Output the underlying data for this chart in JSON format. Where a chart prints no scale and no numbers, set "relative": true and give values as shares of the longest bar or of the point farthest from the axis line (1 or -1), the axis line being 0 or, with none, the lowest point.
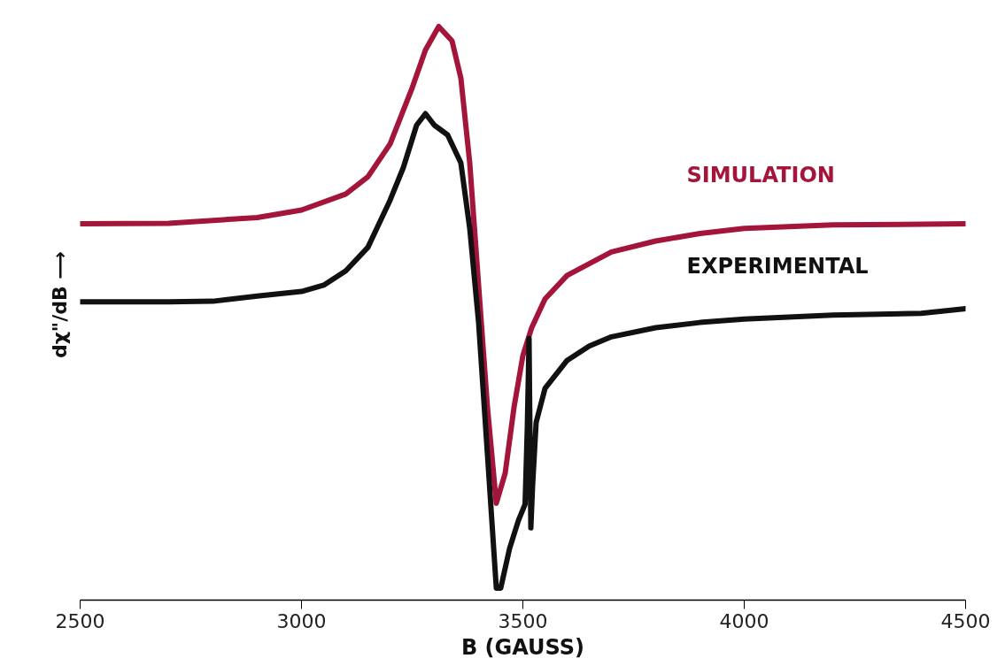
{
  "chart_data": {
    "type": "line",
    "relative": true,
    "xlabel": "B (GAUSS)",
    "ylabel": "dχ\"/dB ⟶",
    "xlim": [
      2500,
      4500
    ],
    "xticks": [
      2500,
      3000,
      3500,
      4000,
      4500
    ],
    "grid": false,
    "marker": "none",
    "line_style": "solid",
    "series": [
      {
        "name": "SIMULATION",
        "color": "#a3153a",
        "x": [
          2500,
          2700,
          2900,
          3000,
          3100,
          3150,
          3200,
          3250,
          3280,
          3310,
          3340,
          3360,
          3380,
          3400,
          3420,
          3440,
          3460,
          3480,
          3500,
          3520,
          3550,
          3600,
          3700,
          3800,
          3900,
          4000,
          4200,
          4500
        ],
        "values": [
          0.656,
          0.657,
          0.667,
          0.68,
          0.708,
          0.738,
          0.795,
          0.893,
          0.959,
          1.0,
          0.975,
          0.91,
          0.762,
          0.549,
          0.336,
          0.169,
          0.221,
          0.336,
          0.426,
          0.475,
          0.525,
          0.566,
          0.607,
          0.626,
          0.639,
          0.648,
          0.654,
          0.656
        ]
      },
      {
        "name": "EXPERIMENTAL",
        "color": "#111111",
        "x": [
          2500,
          2600,
          2700,
          2800,
          2900,
          3000,
          3050,
          3100,
          3150,
          3200,
          3230,
          3260,
          3280,
          3300,
          3330,
          3360,
          3380,
          3400,
          3420,
          3440,
          3450,
          3470,
          3490,
          3505,
          3510,
          3514,
          3518,
          3522,
          3530,
          3550,
          3600,
          3650,
          3700,
          3800,
          3900,
          4000,
          4200,
          4400,
          4500
        ],
        "values": [
          0.52,
          0.52,
          0.52,
          0.521,
          0.53,
          0.538,
          0.549,
          0.574,
          0.615,
          0.697,
          0.754,
          0.828,
          0.848,
          0.828,
          0.811,
          0.762,
          0.648,
          0.484,
          0.254,
          0.021,
          0.021,
          0.09,
          0.139,
          0.167,
          0.3,
          0.456,
          0.126,
          0.2,
          0.31,
          0.369,
          0.418,
          0.443,
          0.459,
          0.475,
          0.484,
          0.49,
          0.497,
          0.5,
          0.508
        ]
      }
    ]
  }
}
